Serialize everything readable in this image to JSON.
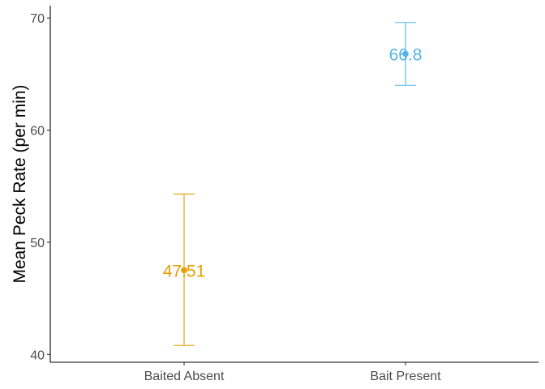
{
  "chart_data": {
    "type": "scatter",
    "title": "",
    "xlabel": "",
    "ylabel": "Mean Peck Rate (per min)",
    "categories": [
      "Baited Absent",
      "Bait Present"
    ],
    "ylim": [
      39.3,
      71.1
    ],
    "yticks": [
      40,
      50,
      60,
      70
    ],
    "grid": false,
    "legend": "none",
    "series": [
      {
        "category": "Baited Absent",
        "value": 47.51,
        "label": "47.51",
        "error_low": 40.8,
        "error_high": 54.3,
        "color": "#E69F00"
      },
      {
        "category": "Bait Present",
        "value": 66.8,
        "label": "66.8",
        "error_low": 64.0,
        "error_high": 69.6,
        "color": "#56B4E9"
      }
    ]
  }
}
